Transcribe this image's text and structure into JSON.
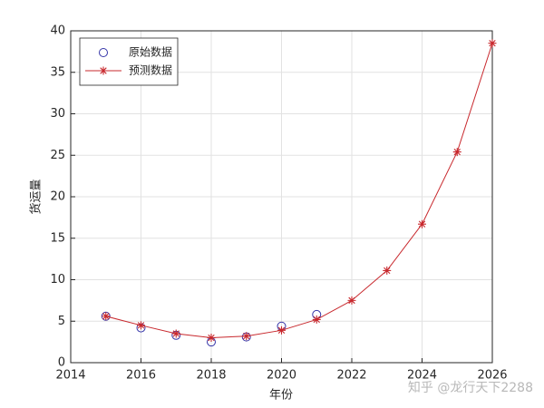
{
  "chart_data": {
    "type": "line",
    "x": [
      2015,
      2016,
      2017,
      2018,
      2019,
      2020,
      2021,
      2022,
      2023,
      2024,
      2025,
      2026
    ],
    "series": [
      {
        "name": "原始数据",
        "color": "#3535a8",
        "marker": "circle",
        "linestyle": "none",
        "values": [
          5.6,
          4.2,
          3.3,
          2.5,
          3.1,
          4.4,
          5.8,
          null,
          null,
          null,
          null,
          null
        ]
      },
      {
        "name": "预测数据",
        "color": "#c8282d",
        "marker": "star",
        "linestyle": "solid",
        "values": [
          5.6,
          4.5,
          3.5,
          3.0,
          3.2,
          3.9,
          5.2,
          7.5,
          11.1,
          16.7,
          25.4,
          38.5
        ]
      }
    ],
    "xlabel": "年份",
    "ylabel": "货运量",
    "xlim": [
      2014,
      2026
    ],
    "xticks": [
      2014,
      2016,
      2018,
      2020,
      2022,
      2024,
      2026
    ],
    "ylim": [
      0,
      40
    ],
    "yticks": [
      0,
      5,
      10,
      15,
      20,
      25,
      30,
      35,
      40
    ],
    "grid": true,
    "legend": "northwest",
    "watermark": "知乎 @龙行天下2288"
  }
}
